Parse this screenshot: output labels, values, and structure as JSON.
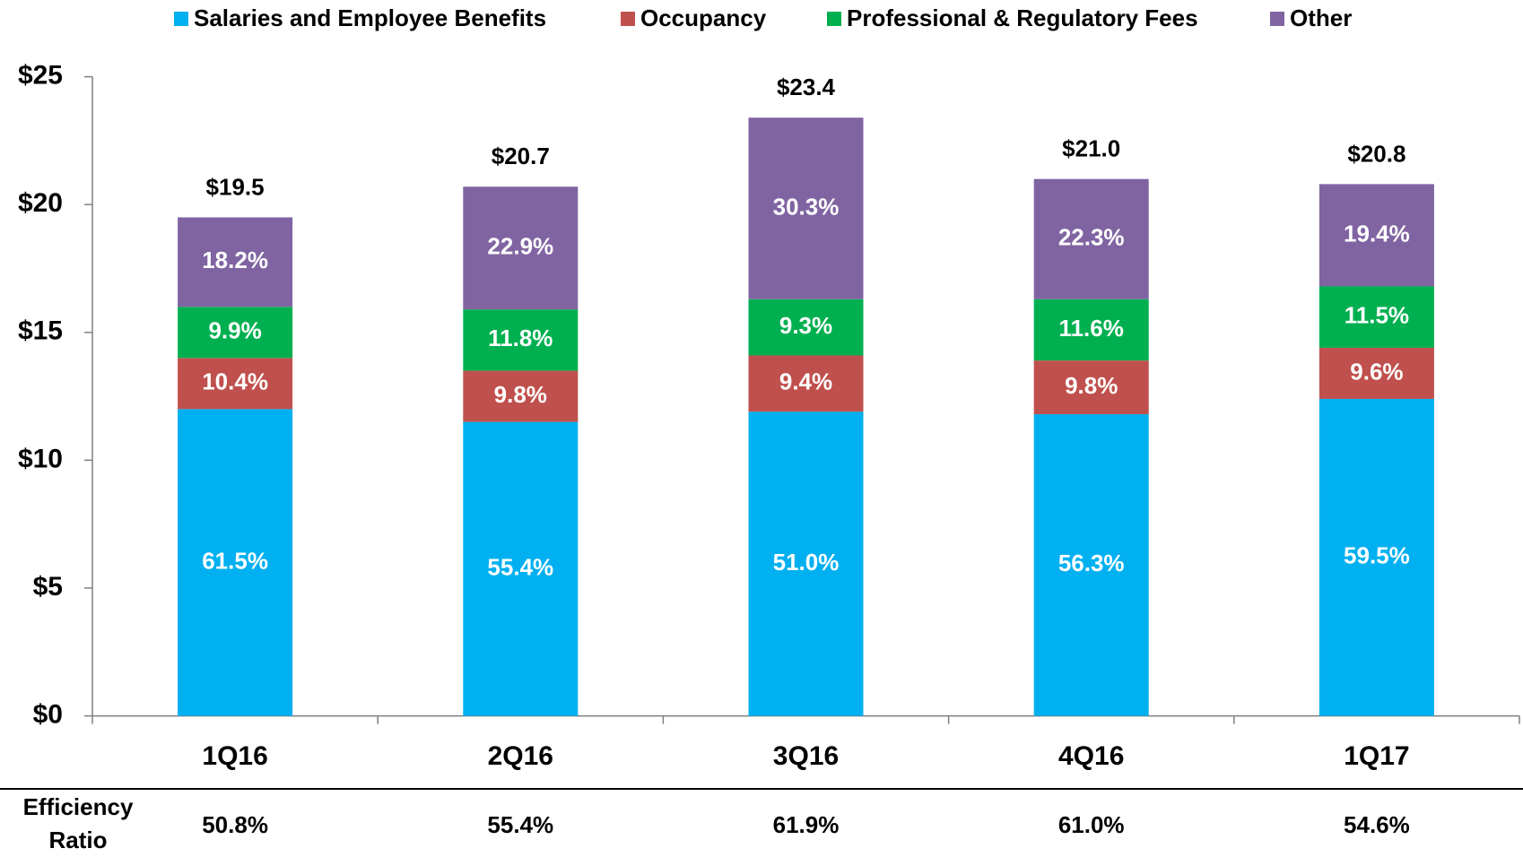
{
  "chart_data": {
    "type": "stacked_bar",
    "categories": [
      "1Q16",
      "2Q16",
      "3Q16",
      "4Q16",
      "1Q17"
    ],
    "series": [
      {
        "name": "Salaries and Employee Benefits",
        "color": "#00b0f0",
        "values": [
          12.0,
          11.5,
          11.9,
          11.8,
          12.4
        ],
        "value_labels": [
          "61.5%",
          "55.4%",
          "51.0%",
          "56.3%",
          "59.5%"
        ]
      },
      {
        "name": "Occupancy",
        "color": "#c0504d",
        "values": [
          2.0,
          2.0,
          2.2,
          2.1,
          2.0
        ],
        "value_labels": [
          "10.4%",
          "9.8%",
          "9.4%",
          "9.8%",
          "9.6%"
        ]
      },
      {
        "name": "Professional & Regulatory Fees",
        "color": "#00b050",
        "values": [
          2.0,
          2.4,
          2.2,
          2.4,
          2.4
        ],
        "value_labels": [
          "9.9%",
          "11.8%",
          "9.3%",
          "11.6%",
          "11.5%"
        ]
      },
      {
        "name": "Other",
        "color": "#8064a2",
        "values": [
          3.5,
          4.8,
          7.1,
          4.7,
          4.0
        ],
        "value_labels": [
          "18.2%",
          "22.9%",
          "30.3%",
          "22.3%",
          "19.4%"
        ]
      }
    ],
    "totals": [
      19.5,
      20.7,
      23.4,
      21.0,
      20.8
    ],
    "total_labels": [
      "$19.5",
      "$20.7",
      "$23.4",
      "$21.0",
      "$20.8"
    ],
    "ylim": [
      0,
      25
    ],
    "yticks": [
      {
        "value": 0,
        "label": "$0"
      },
      {
        "value": 5,
        "label": "$5"
      },
      {
        "value": 10,
        "label": "$10"
      },
      {
        "value": 15,
        "label": "$15"
      },
      {
        "value": 20,
        "label": "$20"
      },
      {
        "value": 25,
        "label": "$25"
      }
    ],
    "legend": "top",
    "efficiency_ratio": {
      "label_lines": [
        "Efficiency",
        "Ratio"
      ],
      "values": [
        "50.8%",
        "55.4%",
        "61.9%",
        "61.0%",
        "54.6%"
      ]
    }
  }
}
